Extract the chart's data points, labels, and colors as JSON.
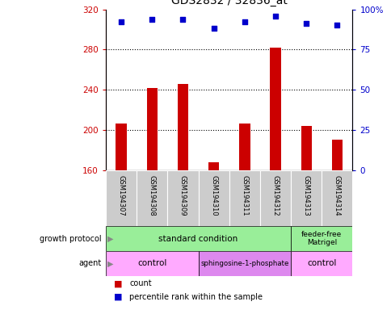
{
  "title": "GDS2832 / 32836_at",
  "samples": [
    "GSM194307",
    "GSM194308",
    "GSM194309",
    "GSM194310",
    "GSM194311",
    "GSM194312",
    "GSM194313",
    "GSM194314"
  ],
  "counts": [
    207,
    242,
    246,
    168,
    207,
    282,
    204,
    191
  ],
  "percentile_ranks_pct": [
    92,
    94,
    94,
    88,
    92,
    96,
    91,
    90
  ],
  "ylim_left": [
    160,
    320
  ],
  "ylim_right": [
    0,
    100
  ],
  "yticks_left": [
    160,
    200,
    240,
    280,
    320
  ],
  "yticks_right": [
    0,
    25,
    50,
    75,
    100
  ],
  "bar_color": "#cc0000",
  "dot_color": "#0000cc",
  "legend_count_label": "count",
  "legend_percentile_label": "percentile rank within the sample",
  "left_axis_color": "#cc0000",
  "right_axis_color": "#0000cc",
  "sample_box_color": "#cccccc",
  "gp_color": "#99ee99",
  "agent_light_color": "#ffaaff",
  "agent_dark_color": "#dd88ee",
  "grid_dotted_ticks": [
    200,
    240,
    280
  ]
}
